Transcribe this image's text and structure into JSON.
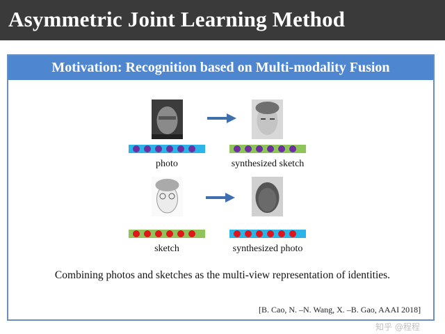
{
  "slide": {
    "title": "Asymmetric Joint Learning Method",
    "panel_title": "Motivation: Recognition based on Multi-modality Fusion",
    "rows": [
      {
        "source_label": "photo",
        "target_label": "synthesized sketch",
        "source_bar_color": "#2ab4e8",
        "target_bar_color": "#8fc45a",
        "dot_color": "#6a2fa0",
        "dots": 6
      },
      {
        "source_label": "sketch",
        "target_label": "synthesized photo",
        "source_bar_color": "#8fc45a",
        "target_bar_color": "#2ab4e8",
        "dot_color": "#e0141b",
        "dots": 6
      }
    ],
    "arrow_color": "#3f6fae",
    "caption": "Combining  photos and sketches as the multi-view representation of identities.",
    "citation": "[B. Cao, N. –N. Wang, X. –B. Gao, AAAI 2018]",
    "watermark": "知乎 @程程"
  }
}
